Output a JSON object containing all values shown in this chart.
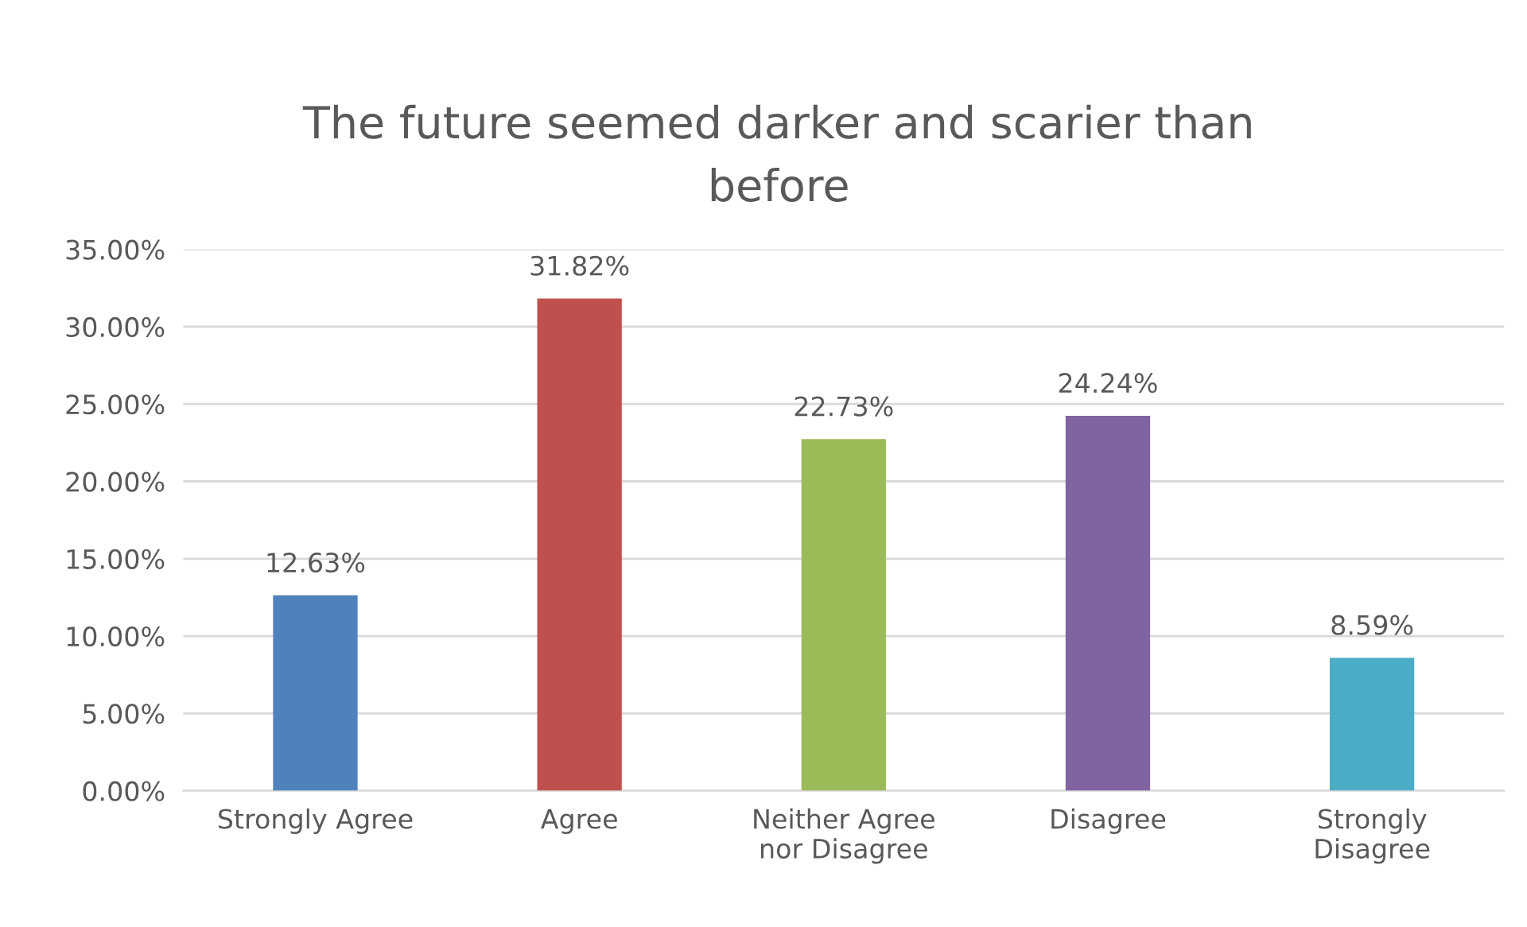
{
  "chart_data": {
    "type": "bar",
    "title": "The future seemed darker and scarier than\nbefore",
    "categories": [
      "Strongly Agree",
      "Agree",
      "Neither Agree\nnor Disagree",
      "Disagree",
      "Strongly\nDisagree"
    ],
    "values": [
      12.63,
      31.82,
      22.73,
      24.24,
      8.59
    ],
    "colors": [
      "#4f81bd",
      "#c0504d",
      "#9bbb59",
      "#8064a2",
      "#4bacc6"
    ],
    "value_labels": [
      "12.63%",
      "31.82%",
      "22.73%",
      "24.24%",
      "8.59%"
    ],
    "ylim": [
      0,
      35
    ],
    "yticks": [
      {
        "value": 0,
        "label": "0.00%"
      },
      {
        "value": 5,
        "label": "5.00%"
      },
      {
        "value": 10,
        "label": "10.00%"
      },
      {
        "value": 15,
        "label": "15.00%"
      },
      {
        "value": 20,
        "label": "20.00%"
      },
      {
        "value": 25,
        "label": "25.00%"
      },
      {
        "value": 30,
        "label": "30.00%"
      },
      {
        "value": 35,
        "label": "35.00%"
      }
    ],
    "grid": "y",
    "legend": false
  }
}
